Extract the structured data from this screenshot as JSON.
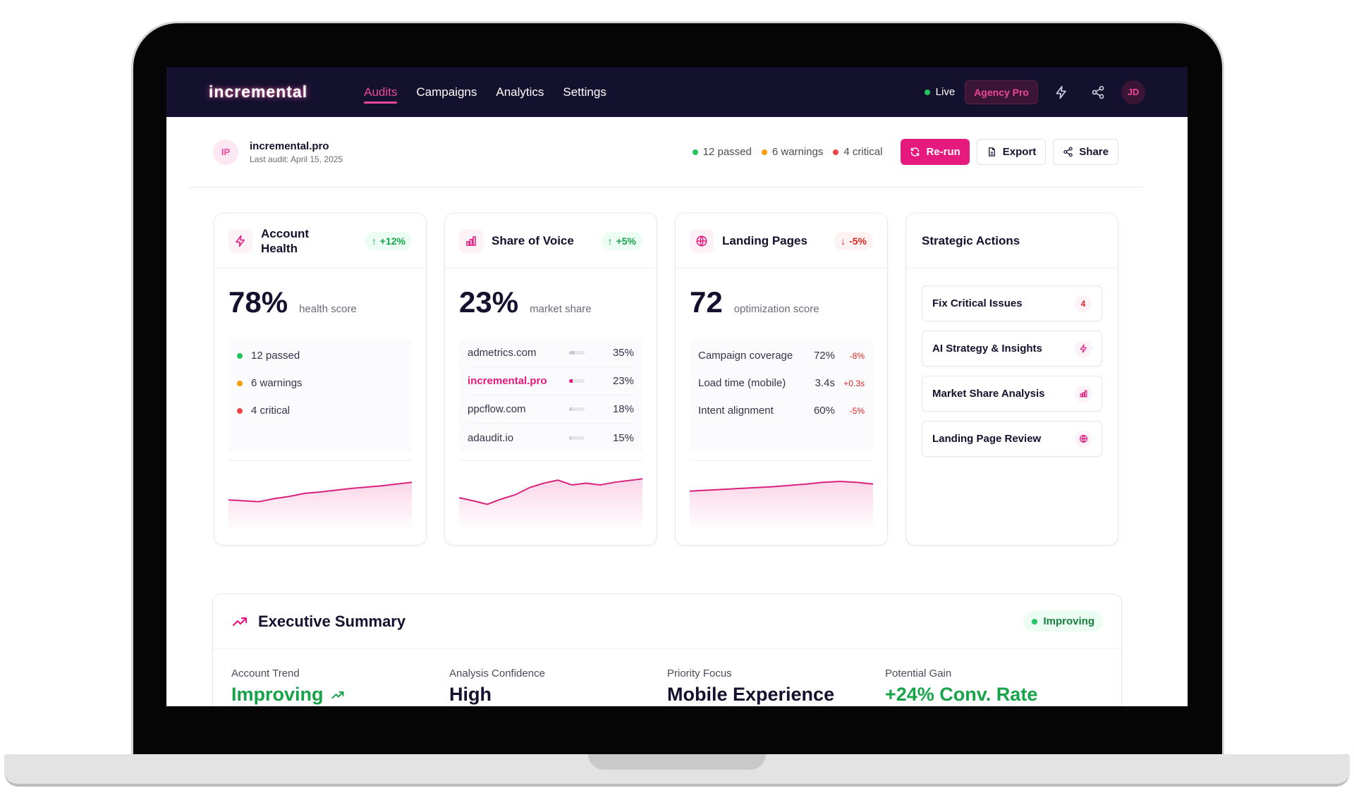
{
  "nav": {
    "logo": "incremental",
    "tabs": [
      {
        "label": "Audits",
        "active": true
      },
      {
        "label": "Campaigns",
        "active": false
      },
      {
        "label": "Analytics",
        "active": false
      },
      {
        "label": "Settings",
        "active": false
      }
    ],
    "live_label": "Live",
    "plan_badge": "Agency Pro",
    "icons": [
      "bolt-icon",
      "share-icon"
    ],
    "avatar_initials": "JD"
  },
  "audit": {
    "avatar_initials": "IP",
    "site": "incremental.pro",
    "last_audit": "Last audit: April 15, 2025",
    "passed": "12 passed",
    "warnings": "6 warnings",
    "critical": "4 critical",
    "buttons": {
      "rerun": "Re-run",
      "export": "Export",
      "share": "Share"
    }
  },
  "cards": {
    "health": {
      "title": "Account Health",
      "delta": "+12%",
      "value": "78%",
      "value_label": "health score",
      "checks": [
        "12 passed",
        "6 warnings",
        "4 critical"
      ],
      "trend": [
        0.4,
        0.38,
        0.36,
        0.43,
        0.48,
        0.55,
        0.58,
        0.62,
        0.66,
        0.69,
        0.72,
        0.76,
        0.8
      ]
    },
    "sov": {
      "title": "Share of Voice",
      "delta": "+5%",
      "value": "23%",
      "value_label": "market share",
      "rows": [
        {
          "domain": "admetrics.com",
          "pct": "35%",
          "share": 0.35
        },
        {
          "domain": "incremental.pro",
          "pct": "23%",
          "share": 0.23
        },
        {
          "domain": "ppcflow.com",
          "pct": "18%",
          "share": 0.18
        },
        {
          "domain": "adaudit.io",
          "pct": "15%",
          "share": 0.15
        }
      ],
      "trend": [
        0.45,
        0.38,
        0.3,
        0.42,
        0.52,
        0.68,
        0.78,
        0.85,
        0.74,
        0.78,
        0.74,
        0.8,
        0.84,
        0.88
      ]
    },
    "landing": {
      "title": "Landing Pages",
      "delta": "-5%",
      "value": "72",
      "value_label": "optimization score",
      "rows": [
        {
          "metric": "Campaign coverage",
          "value": "72%",
          "delta": "-8%"
        },
        {
          "metric": "Load time (mobile)",
          "value": "3.4s",
          "delta": "+0.3s"
        },
        {
          "metric": "Intent alignment",
          "value": "60%",
          "delta": "-5%"
        }
      ],
      "trend": [
        0.6,
        0.62,
        0.64,
        0.66,
        0.68,
        0.7,
        0.73,
        0.76,
        0.8,
        0.82,
        0.8,
        0.76
      ]
    },
    "actions": {
      "title": "Strategic Actions",
      "items": [
        {
          "label": "Fix Critical Issues",
          "badge": "4"
        },
        {
          "label": "AI Strategy & Insights",
          "icon": "bolt-icon"
        },
        {
          "label": "Market Share Analysis",
          "icon": "bar-chart-icon"
        },
        {
          "label": "Landing Page Review",
          "icon": "globe-icon"
        }
      ]
    }
  },
  "summary": {
    "title": "Executive Summary",
    "badge": "Improving",
    "cols": [
      {
        "label": "Account Trend",
        "value": "Improving"
      },
      {
        "label": "Analysis Confidence",
        "value": "High"
      },
      {
        "label": "Priority Focus",
        "value": "Mobile Experience"
      },
      {
        "label": "Potential Gain",
        "value": "+24% Conv. Rate"
      }
    ]
  },
  "colors": {
    "accent": "#e6197e",
    "nav_bg": "#14112e",
    "success": "#16a34a",
    "danger": "#dc2626",
    "warning": "#f59e0b"
  }
}
